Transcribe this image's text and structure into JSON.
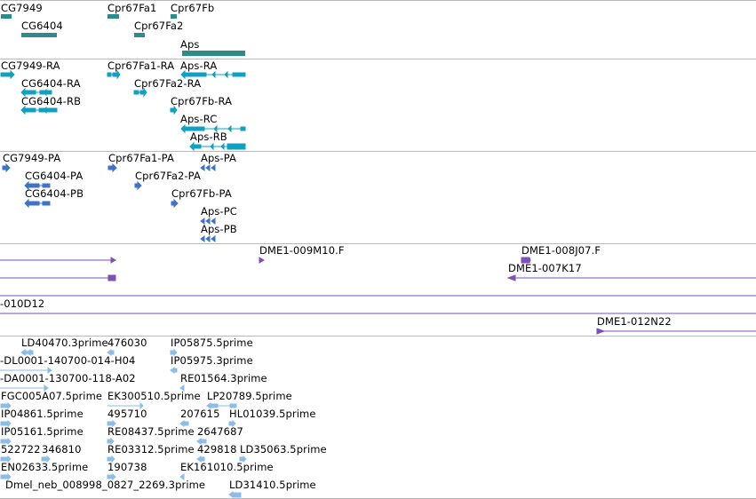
{
  "colors": {
    "gene": "#2e8b8b",
    "transcript": "#10a0c0",
    "protein": "#3f73c6",
    "clone": "#7a52b8",
    "est": "#8cbde6"
  },
  "tracks": {
    "genes": {
      "cg7949": "CG7949",
      "cpr67fa1": "Cpr67Fa1",
      "cpr67fb": "Cpr67Fb",
      "cg6404": "CG6404",
      "cpr67fa2": "Cpr67Fa2",
      "aps": "Aps"
    },
    "transcripts": {
      "cg7949_ra": "CG7949-RA",
      "cpr67fa1_ra": "Cpr67Fa1-RA",
      "aps_ra": "Aps-RA",
      "cg6404_ra": "CG6404-RA",
      "cpr67fa2_ra": "Cpr67Fa2-RA",
      "cg6404_rb": "CG6404-RB",
      "cpr67fb_ra": "Cpr67Fb-RA",
      "aps_rc": "Aps-RC",
      "aps_rb": "Aps-RB"
    },
    "proteins": {
      "cg7949_pa": "CG7949-PA",
      "cpr67fa1_pa": "Cpr67Fa1-PA",
      "aps_pa": "Aps-PA",
      "cg6404_pa": "CG6404-PA",
      "cpr67fa2_pa": "Cpr67Fa2-PA",
      "cg6404_pb": "CG6404-PB",
      "cpr67fb_pa": "Cpr67Fb-PA",
      "aps_pc": "Aps-PC",
      "aps_pb": "Aps-PB"
    },
    "clones": {
      "dme1_009m10": "DME1-009M10.F",
      "dme1_008j07": "DME1-008J07.F",
      "dme1_007k17": "DME1-007K17",
      "clone_010d12": "-010D12",
      "dme1_012n22": "DME1-012N22"
    },
    "ests": {
      "ld40470": "LD40470.3prime",
      "e476030": "476030",
      "ip05875": "IP05875.5prime",
      "dl0001": "-DL0001-140700-014-H04",
      "ip05975": "IP05975.3prime",
      "da0001": "-DA0001-130700-118-A02",
      "re01564": "RE01564.3prime",
      "fgc005a07": "FGC005A07.5prime",
      "ek300510": "EK300510.5prime",
      "lp20789": "LP20789.5prime",
      "ip04861": "IP04861.5prime",
      "e495710": "495710",
      "e207615": "207615",
      "hl01039": "HL01039.5prime",
      "ip05161": "IP05161.5prime",
      "re08437": "RE08437.5prime",
      "e2647687": "2647687",
      "e522722": "522722",
      "e346810": "346810",
      "re03312": "RE03312.5prime",
      "e429818": "429818",
      "ld35063": "LD35063.5prime",
      "en02633": "EN02633.5prime",
      "e190738": "190738",
      "ek161010": "EK161010.5prime",
      "dmel_neb": "Dmel_neb_008998_0827_2269.3prime",
      "ld31410": "LD31410.5prime"
    }
  }
}
